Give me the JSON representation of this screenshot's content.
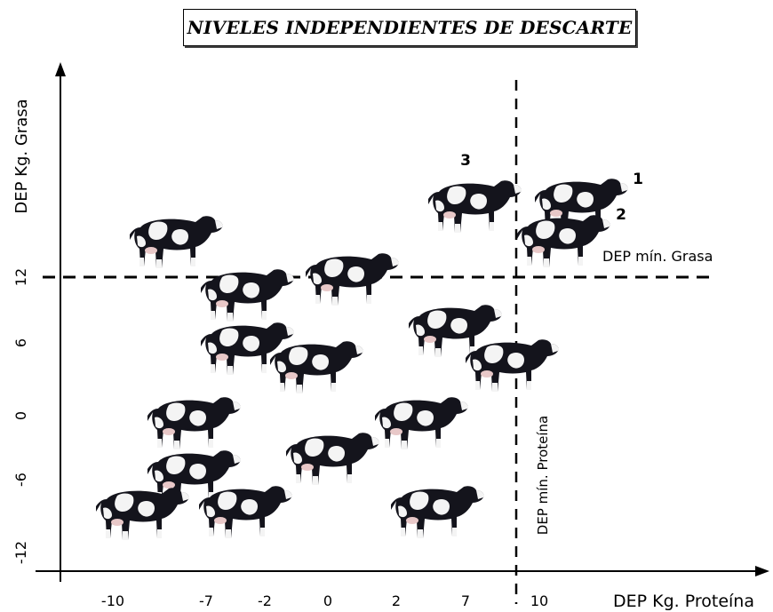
{
  "title": "NIVELES INDEPENDIENTES DE DESCARTE",
  "axes": {
    "x_label": "DEP Kg. Proteína",
    "y_label": "DEP Kg. Grasa",
    "x_ticks": [
      "-10",
      "-7",
      "-2",
      "0",
      "2",
      "7",
      "10"
    ],
    "y_ticks": [
      "12",
      "6",
      "0",
      "-6",
      "-12"
    ]
  },
  "thresholds": {
    "grasa_label": "DEP mín. Grasa",
    "proteina_label": "DEP mín. Proteína"
  },
  "numbered_cows": [
    "1",
    "2",
    "3"
  ],
  "colors": {
    "line": "#000000",
    "cow_black": "#14141c",
    "cow_white": "#f4f4f4"
  }
}
